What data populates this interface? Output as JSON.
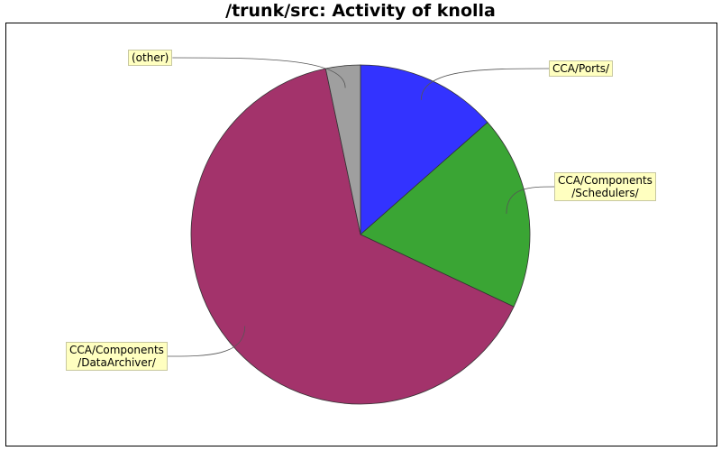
{
  "chart_data": {
    "type": "pie",
    "title": "/trunk/src: Activity of knolla",
    "slices": [
      {
        "label_lines": [
          "CCA/Ports/"
        ],
        "value": 13.5,
        "color": "#3333ff"
      },
      {
        "label_lines": [
          "CCA/Components",
          "/Schedulers/"
        ],
        "value": 18.5,
        "color": "#3aa534"
      },
      {
        "label_lines": [
          "CCA/Components",
          "/DataArchiver/"
        ],
        "value": 64.7,
        "color": "#a3336b"
      },
      {
        "label_lines": [
          "(other)"
        ],
        "value": 3.3,
        "color": "#9f9f9f"
      }
    ],
    "start_angle_deg": 90,
    "direction": "clockwise"
  }
}
